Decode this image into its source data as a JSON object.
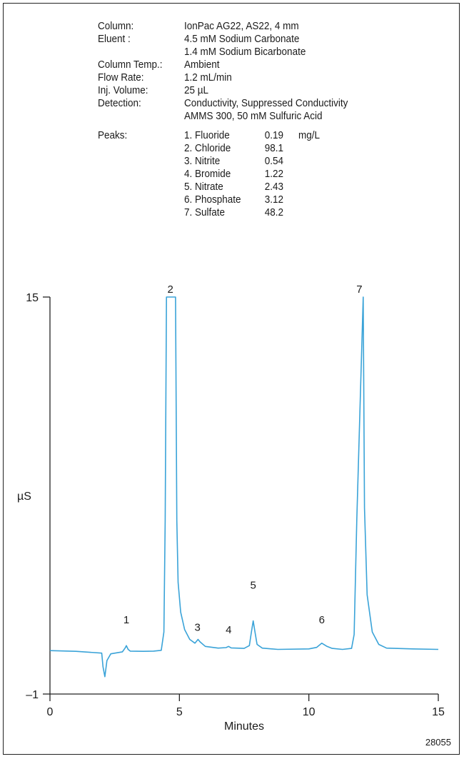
{
  "conditions": [
    {
      "label": "Column:",
      "values": [
        "IonPac AG22, AS22, 4 mm"
      ]
    },
    {
      "label": "Eluent :",
      "values": [
        "4.5 mM Sodium Carbonate",
        "1.4 mM Sodium Bicarbonate"
      ]
    },
    {
      "label": "Column Temp.:",
      "values": [
        "Ambient"
      ]
    },
    {
      "label": "Flow Rate:",
      "values": [
        "1.2 mL/min"
      ]
    },
    {
      "label": "Inj. Volume:",
      "values": [
        "25 µL"
      ]
    },
    {
      "label": "Detection:",
      "values": [
        "Conductivity, Suppressed Conductivity",
        "AMMS 300, 50 mM Sulfuric Acid"
      ]
    }
  ],
  "peaks_label": "Peaks:",
  "peaks_unit": "mg/L",
  "peaks": [
    {
      "name": "1. Fluoride",
      "conc": "0.19"
    },
    {
      "name": "2. Chloride",
      "conc": "98.1"
    },
    {
      "name": "3. Nitrite",
      "conc": "0.54"
    },
    {
      "name": "4. Bromide",
      "conc": "1.22"
    },
    {
      "name": "5. Nitrate",
      "conc": "2.43"
    },
    {
      "name": "6. Phosphate",
      "conc": "3.12"
    },
    {
      "name": "7. Sulfate",
      "conc": "48.2"
    }
  ],
  "figure_id": "28055",
  "line_color": "#3aa3d8",
  "chart_data": {
    "type": "line",
    "xlabel": "Minutes",
    "ylabel": "µS",
    "xlim": [
      0,
      15
    ],
    "ylim": [
      -1,
      15
    ],
    "xticks": [
      "0",
      "5",
      "10",
      "15"
    ],
    "yticks": [
      "–1",
      "15"
    ],
    "peak_labels": [
      {
        "label": "1",
        "x": 2.95,
        "y": 1.5
      },
      {
        "label": "2",
        "x": 4.65,
        "y": 15
      },
      {
        "label": "3",
        "x": 5.7,
        "y": 1.2
      },
      {
        "label": "4",
        "x": 6.9,
        "y": 1.1
      },
      {
        "label": "5",
        "x": 7.85,
        "y": 2.9
      },
      {
        "label": "6",
        "x": 10.5,
        "y": 1.5
      },
      {
        "label": "7",
        "x": 11.95,
        "y": 15
      }
    ],
    "series": [
      {
        "x": [
          0,
          1.0,
          2.0,
          2.05,
          2.12,
          2.2,
          2.35,
          2.8,
          2.9,
          2.95,
          3.02,
          3.1,
          3.6,
          4.0,
          4.3,
          4.4,
          4.45,
          4.5,
          4.85,
          4.9,
          4.95,
          5.05,
          5.2,
          5.4,
          5.6,
          5.72,
          5.8,
          6.0,
          6.5,
          6.8,
          6.9,
          7.0,
          7.5,
          7.7,
          7.78,
          7.85,
          7.92,
          8.0,
          8.2,
          8.8,
          10.0,
          10.3,
          10.5,
          10.7,
          10.9,
          11.3,
          11.65,
          11.75,
          11.85,
          12.1,
          12.15,
          12.25,
          12.45,
          12.7,
          13.0,
          14.0,
          15.0
        ],
        "y": [
          0.75,
          0.72,
          0.65,
          0.1,
          -0.3,
          0.35,
          0.62,
          0.7,
          0.85,
          0.95,
          0.8,
          0.73,
          0.72,
          0.73,
          0.76,
          1.5,
          6.0,
          15.0,
          15.0,
          6.0,
          3.5,
          2.3,
          1.6,
          1.2,
          1.05,
          1.2,
          1.1,
          0.92,
          0.85,
          0.87,
          0.92,
          0.86,
          0.84,
          0.95,
          1.5,
          1.95,
          1.5,
          1.0,
          0.85,
          0.8,
          0.82,
          0.88,
          1.05,
          0.92,
          0.84,
          0.8,
          0.84,
          1.4,
          6.0,
          15.0,
          6.5,
          3.0,
          1.5,
          1.0,
          0.85,
          0.82,
          0.8
        ]
      }
    ]
  }
}
